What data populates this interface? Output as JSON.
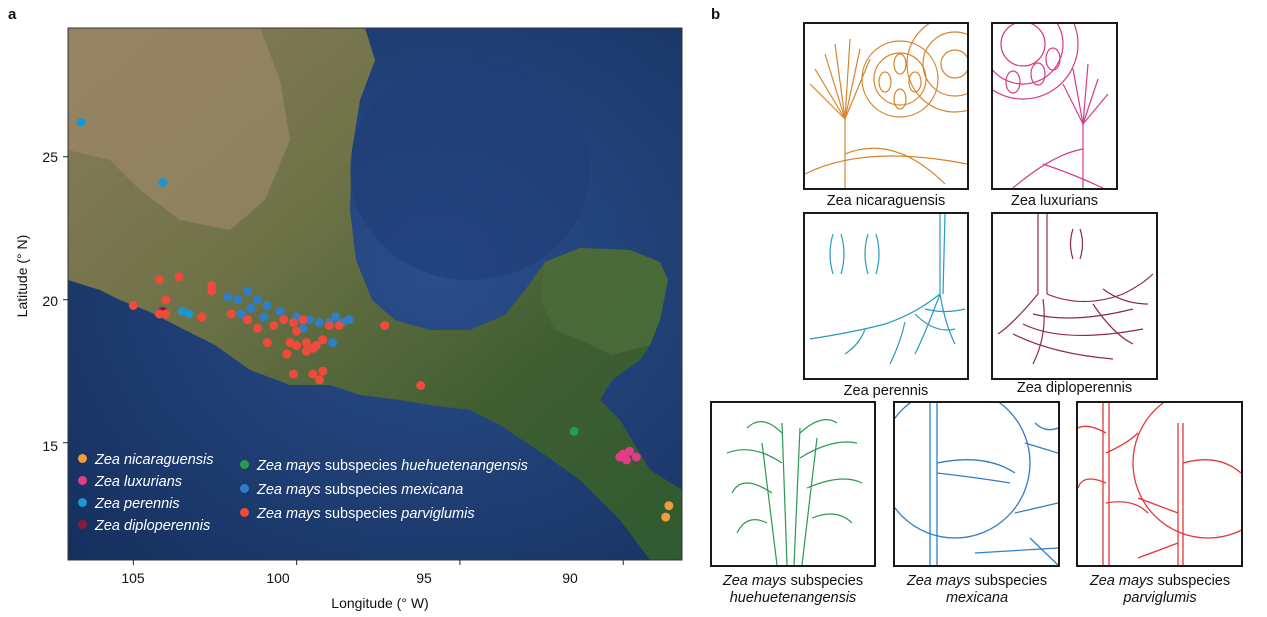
{
  "panels": {
    "a": {
      "label": "a",
      "ylabel": "Latitude (° N)",
      "xlabel": "Longitude (° W)",
      "yticks": [
        "25",
        "20",
        "15"
      ],
      "xticks": [
        "105",
        "100",
        "95",
        "90"
      ]
    },
    "b": {
      "label": "b"
    }
  },
  "legend": [
    {
      "name": "Zea nicaraguensis",
      "color": "#f39a3a"
    },
    {
      "name": "Zea luxurians",
      "color": "#e23c87"
    },
    {
      "name": "Zea perennis",
      "color": "#1f95d0"
    },
    {
      "name": "Zea diploperennis",
      "color": "#8b1a3a"
    },
    {
      "name_italic_a": "Zea mays",
      "name_plain": "subspecies",
      "name_italic_b": "huehuetenangensis",
      "color": "#2a9a4f"
    },
    {
      "name_italic_a": "Zea mays",
      "name_plain": "subspecies",
      "name_italic_b": "mexicana",
      "color": "#2f7fc6"
    },
    {
      "name_italic_a": "Zea mays",
      "name_plain": "subspecies",
      "name_italic_b": "parviglumis",
      "color": "#ef4a3c"
    }
  ],
  "illustrations": [
    {
      "species": "Zea nicaraguensis",
      "color": "#d8842e"
    },
    {
      "species": "Zea luxurians",
      "color": "#d63a8a"
    },
    {
      "species": "Zea perennis",
      "color": "#2a9ac2"
    },
    {
      "species": "Zea diploperennis",
      "color": "#8f2a43"
    },
    {
      "line1_it": "Zea mays",
      "line1_plain": "subspecies",
      "line2": "huehuetenangensis",
      "color": "#2a9a4f"
    },
    {
      "line1_it": "Zea mays",
      "line1_plain": "subspecies",
      "line2": "mexicana",
      "color": "#2f7fc6"
    },
    {
      "line1_it": "Zea mays",
      "line1_plain": "subspecies",
      "line2": "parviglumis",
      "color": "#e03a3a"
    }
  ],
  "chart_data": {
    "type": "scatter",
    "title": "",
    "xlabel": "Longitude (° W)",
    "ylabel": "Latitude (° N)",
    "xlim": [
      107,
      88.2
    ],
    "ylim": [
      10.9,
      29.5
    ],
    "xticks": [
      105,
      100,
      95,
      90
    ],
    "yticks": [
      25,
      20,
      15
    ],
    "legend_position": "bottom-left",
    "series": [
      {
        "name": "Zea nicaraguensis",
        "color": "#f39a3a",
        "points": [
          [
            88.6,
            12.8
          ],
          [
            88.7,
            12.4
          ]
        ]
      },
      {
        "name": "Zea luxurians",
        "color": "#e23c87",
        "points": [
          [
            90.0,
            14.6
          ],
          [
            89.9,
            14.4
          ],
          [
            89.6,
            14.5
          ],
          [
            89.8,
            14.7
          ],
          [
            90.1,
            14.5
          ]
        ]
      },
      {
        "name": "Zea perennis",
        "color": "#1f95d0",
        "points": [
          [
            106.6,
            26.2
          ],
          [
            104.1,
            24.1
          ],
          [
            103.5,
            19.6
          ],
          [
            103.3,
            19.5
          ]
        ]
      },
      {
        "name": "Zea diploperennis",
        "color": "#8b1a3a",
        "points": [
          [
            104.1,
            19.6
          ]
        ]
      },
      {
        "name": "Zea mays subspecies huehuetenangensis",
        "color": "#2a9a4f",
        "points": [
          [
            91.5,
            15.4
          ]
        ]
      },
      {
        "name": "Zea mays subspecies mexicana",
        "color": "#2f7fc6",
        "points": [
          [
            102.1,
            20.1
          ],
          [
            101.8,
            20.0
          ],
          [
            101.5,
            20.3
          ],
          [
            101.2,
            20.0
          ],
          [
            100.9,
            19.8
          ],
          [
            100.5,
            19.6
          ],
          [
            100.0,
            19.4
          ],
          [
            99.6,
            19.3
          ],
          [
            99.3,
            19.2
          ],
          [
            99.0,
            19.2
          ],
          [
            98.8,
            19.4
          ],
          [
            98.6,
            19.2
          ],
          [
            98.4,
            19.3
          ],
          [
            101.0,
            19.4
          ],
          [
            101.4,
            19.7
          ],
          [
            99.8,
            19.0
          ],
          [
            98.9,
            18.5
          ],
          [
            101.7,
            19.5
          ]
        ]
      },
      {
        "name": "Zea mays subspecies parviglumis",
        "color": "#ef4a3c",
        "points": [
          [
            104.2,
            20.7
          ],
          [
            103.6,
            20.8
          ],
          [
            102.6,
            20.5
          ],
          [
            102.6,
            20.3
          ],
          [
            104.0,
            20.0
          ],
          [
            105.0,
            19.8
          ],
          [
            104.2,
            19.5
          ],
          [
            104.0,
            19.5
          ],
          [
            102.9,
            19.4
          ],
          [
            102.0,
            19.5
          ],
          [
            101.5,
            19.3
          ],
          [
            101.2,
            19.0
          ],
          [
            100.7,
            19.1
          ],
          [
            100.4,
            19.3
          ],
          [
            100.1,
            19.2
          ],
          [
            100.0,
            18.9
          ],
          [
            100.2,
            18.5
          ],
          [
            100.0,
            18.4
          ],
          [
            99.7,
            18.5
          ],
          [
            99.4,
            18.4
          ],
          [
            99.2,
            18.6
          ],
          [
            99.0,
            19.1
          ],
          [
            98.7,
            19.1
          ],
          [
            97.3,
            19.1
          ],
          [
            100.9,
            18.5
          ],
          [
            100.3,
            18.1
          ],
          [
            99.7,
            18.2
          ],
          [
            99.5,
            18.3
          ],
          [
            100.1,
            17.4
          ],
          [
            99.5,
            17.4
          ],
          [
            99.2,
            17.5
          ],
          [
            99.3,
            17.2
          ],
          [
            96.2,
            17.0
          ],
          [
            99.8,
            19.3
          ]
        ]
      }
    ]
  }
}
